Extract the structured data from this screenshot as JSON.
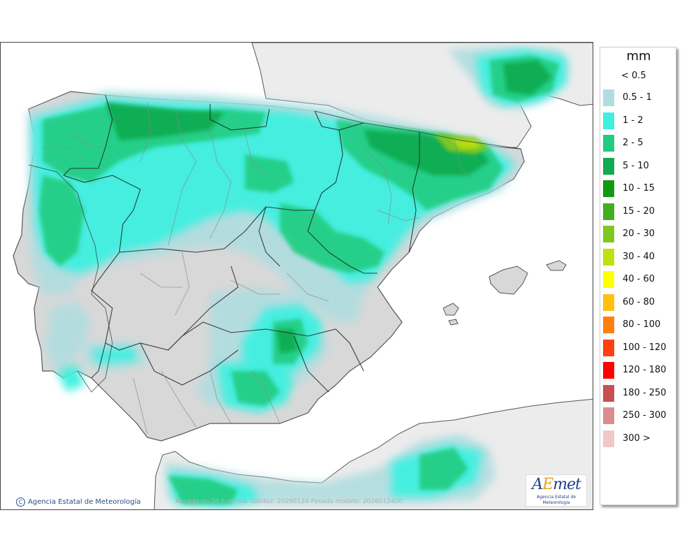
{
  "legend": {
    "unit": "mm",
    "first_label": "< 0.5",
    "entries": [
      {
        "label": "0.5 - 1",
        "color": "#b0dde0"
      },
      {
        "label": "1 - 2",
        "color": "#3ff0e0"
      },
      {
        "label": "2 - 5",
        "color": "#20cc80"
      },
      {
        "label": "5 - 10",
        "color": "#10aa50"
      },
      {
        "label": "10 - 15",
        "color": "#109a10"
      },
      {
        "label": "15 - 20",
        "color": "#40b020"
      },
      {
        "label": "20 - 30",
        "color": "#80c820"
      },
      {
        "label": "30 - 40",
        "color": "#c0e010"
      },
      {
        "label": "40 - 60",
        "color": "#ffff00"
      },
      {
        "label": "60 - 80",
        "color": "#ffc010"
      },
      {
        "label": "80 - 100",
        "color": "#ff8010"
      },
      {
        "label": "100 - 120",
        "color": "#ff4010"
      },
      {
        "label": "120 - 180",
        "color": "#ff0000"
      },
      {
        "label": "180 - 250",
        "color": "#c85050"
      },
      {
        "label": "250 - 300",
        "color": "#dc8c8c"
      },
      {
        "label": "300 >",
        "color": "#f0c8c8"
      }
    ]
  },
  "map": {
    "credit": "Agencia Estatal de Meteorología",
    "caption": "Nevada en 24 h media. Validez: 20260124 Pasada modelo: 2026012400",
    "logo_text": "AEmet",
    "logo_subtext": "Agencia Estatal de Meteorología"
  }
}
